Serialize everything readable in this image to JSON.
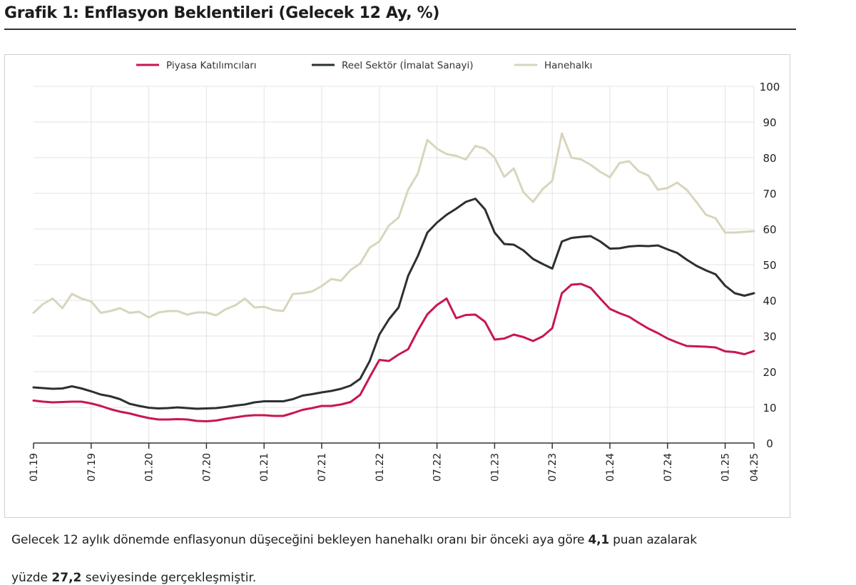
{
  "title": "Grafik 1: Enflasyon Beklentileri (Gelecek 12 Ay, %)",
  "colors": {
    "piyasa": "#c8174f",
    "reel": "#2b3034",
    "hane": "#d8d5bd",
    "grid": "#e3e3e3",
    "axis": "#333333"
  },
  "paragraph": {
    "pre": "Gelecek 12 aylık dönemde enflasyonun düşeceğini bekleyen hanehalkı oranı bir önceki aya göre ",
    "bold": "4,1",
    "post": " puan azalarak",
    "line2_pre": "yüzde ",
    "line2_bold": "27,2",
    "line2_post": " seviyesinde gerçekleşmiştir."
  },
  "chart_data": {
    "type": "line",
    "title": "Grafik 1: Enflasyon Beklentileri (Gelecek 12 Ay, %)",
    "xlabel": "",
    "ylabel": "%",
    "ylim": [
      0,
      100
    ],
    "y_ticks": [
      0,
      10,
      20,
      30,
      40,
      50,
      60,
      70,
      80,
      90,
      100
    ],
    "y_axis_side": "right",
    "legend_position": "top-center",
    "grid": true,
    "x_tick_labels": [
      "01.19",
      "07.19",
      "01.20",
      "07.20",
      "01.21",
      "07.21",
      "01.22",
      "07.22",
      "01.23",
      "07.23",
      "01.24",
      "07.24",
      "01.25",
      "04.25"
    ],
    "x_tick_index": [
      0,
      6,
      12,
      18,
      24,
      30,
      36,
      42,
      48,
      54,
      60,
      66,
      72,
      75
    ],
    "months": 76,
    "series": [
      {
        "name": "Piyasa Katılımcıları",
        "color": "#c8174f",
        "values": [
          11.9,
          11.6,
          11.4,
          11.5,
          11.6,
          11.6,
          11.1,
          10.4,
          9.5,
          8.8,
          8.3,
          7.6,
          7.0,
          6.6,
          6.6,
          6.7,
          6.6,
          6.2,
          6.1,
          6.3,
          6.8,
          7.2,
          7.6,
          7.8,
          7.8,
          7.6,
          7.6,
          8.4,
          9.3,
          9.8,
          10.4,
          10.4,
          10.8,
          11.5,
          13.5,
          18.5,
          23.3,
          23.0,
          24.8,
          26.3,
          31.5,
          36.1,
          38.7,
          40.5,
          35.0,
          35.9,
          36.0,
          34.0,
          29.0,
          29.3,
          30.4,
          29.7,
          28.6,
          29.9,
          32.2,
          42.0,
          44.4,
          44.6,
          43.5,
          40.5,
          37.6,
          36.4,
          35.4,
          33.7,
          32.1,
          30.8,
          29.3,
          28.2,
          27.2,
          27.1,
          27.0,
          26.8,
          25.7,
          25.5,
          24.9,
          25.8
        ]
      },
      {
        "name": "Reel Sektör (İmalat Sanayi)",
        "color": "#2b3034",
        "values": [
          15.6,
          15.4,
          15.2,
          15.3,
          15.9,
          15.3,
          14.5,
          13.6,
          13.1,
          12.3,
          11.0,
          10.4,
          9.9,
          9.7,
          9.8,
          10.0,
          9.8,
          9.6,
          9.7,
          9.8,
          10.1,
          10.5,
          10.8,
          11.4,
          11.7,
          11.7,
          11.7,
          12.3,
          13.3,
          13.7,
          14.2,
          14.6,
          15.2,
          16.1,
          18.0,
          23.0,
          30.4,
          34.7,
          38.0,
          46.9,
          52.4,
          59.0,
          61.8,
          64.0,
          65.7,
          67.6,
          68.5,
          65.5,
          59.0,
          55.8,
          55.6,
          54.0,
          51.6,
          50.2,
          48.9,
          56.5,
          57.5,
          57.8,
          58.0,
          56.5,
          54.5,
          54.6,
          55.1,
          55.3,
          55.2,
          55.4,
          54.3,
          53.3,
          51.4,
          49.7,
          48.4,
          47.3,
          44.1,
          42.0,
          41.3,
          42.0
        ]
      },
      {
        "name": "Hanehalkı",
        "color": "#d8d5bd",
        "values": [
          36.5,
          39.0,
          40.5,
          37.8,
          41.8,
          40.5,
          39.7,
          36.5,
          37.0,
          37.8,
          36.5,
          36.8,
          35.2,
          36.6,
          37.0,
          37.0,
          36.0,
          36.6,
          36.6,
          35.8,
          37.5,
          38.6,
          40.5,
          38.0,
          38.2,
          37.3,
          37.0,
          41.8,
          42.0,
          42.5,
          44.0,
          46.0,
          45.5,
          48.5,
          50.3,
          54.8,
          56.5,
          61.0,
          63.2,
          71.0,
          75.5,
          85.0,
          82.5,
          81.0,
          80.5,
          79.5,
          83.3,
          82.5,
          80.0,
          74.6,
          77.0,
          70.3,
          67.6,
          71.2,
          73.5,
          86.8,
          80.0,
          79.5,
          78.0,
          76.0,
          74.5,
          78.5,
          79.0,
          76.2,
          75.0,
          71.0,
          71.5,
          73.0,
          71.0,
          67.6,
          64.0,
          63.0,
          59.0,
          59.0,
          59.2,
          59.4
        ]
      }
    ]
  }
}
